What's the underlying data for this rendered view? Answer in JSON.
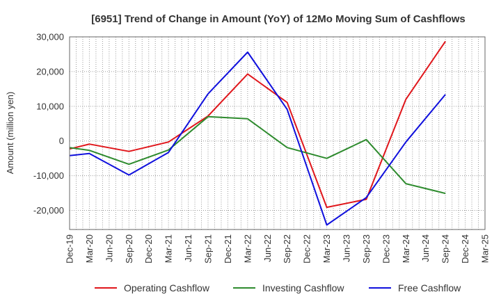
{
  "chart_data": {
    "type": "line",
    "title": "[6951]  Trend of Change in Amount (YoY) of 12Mo Moving Sum of Cashflows",
    "xlabel": "",
    "ylabel": "Amount (million yen)",
    "ylim": [
      -25500,
      30000
    ],
    "yticks": [
      30000,
      20000,
      10000,
      0,
      -10000,
      -20000
    ],
    "ytick_labels": [
      "30,000",
      "20,000",
      "10,000",
      "0",
      "-10,000",
      "-20,000"
    ],
    "categories": [
      "Dec-19",
      "Mar-20",
      "Jun-20",
      "Sep-20",
      "Dec-20",
      "Mar-21",
      "Jun-21",
      "Sep-21",
      "Dec-21",
      "Mar-22",
      "Jun-22",
      "Sep-22",
      "Dec-22",
      "Mar-23",
      "Jun-23",
      "Sep-23",
      "Dec-23",
      "Mar-24",
      "Jun-24",
      "Sep-24",
      "Dec-24",
      "Mar-25"
    ],
    "series": [
      {
        "name": "Operating Cashflow",
        "color": "#e0161b",
        "values": [
          -2300,
          -900,
          null,
          -3000,
          null,
          -300,
          null,
          7200,
          null,
          19300,
          null,
          11100,
          null,
          -19100,
          null,
          -16800,
          null,
          12000,
          null,
          28700,
          null,
          null
        ]
      },
      {
        "name": "Investing Cashflow",
        "color": "#2e8b2e",
        "values": [
          -1900,
          -2700,
          null,
          -6700,
          null,
          -2600,
          null,
          7000,
          null,
          6400,
          null,
          -1900,
          null,
          -5000,
          null,
          400,
          null,
          -12300,
          null,
          -15100,
          null,
          null
        ]
      },
      {
        "name": "Free Cashflow",
        "color": "#1010dd",
        "values": [
          -4200,
          -3600,
          null,
          -9800,
          null,
          -3300,
          null,
          13600,
          null,
          25600,
          null,
          9100,
          null,
          -24200,
          null,
          -16300,
          null,
          -300,
          null,
          13400,
          null,
          null
        ]
      }
    ],
    "legend_position": "bottom",
    "grid": true
  }
}
